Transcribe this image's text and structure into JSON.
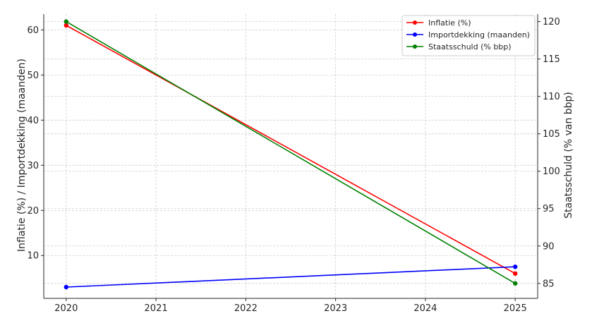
{
  "chart_data": {
    "type": "line",
    "x": [
      2020,
      2025
    ],
    "x_ticks": [
      "2020",
      "2021",
      "2022",
      "2023",
      "2024",
      "2025"
    ],
    "xlabel": "",
    "ylabel_left": "Inflatie (%) / Importdekking (maanden)",
    "ylabel_right": "Staatsschuld (% van bbp)",
    "y_left_ticks": [
      "10",
      "20",
      "30",
      "40",
      "50",
      "60"
    ],
    "y_right_ticks": [
      "85",
      "90",
      "95",
      "100",
      "105",
      "110",
      "115",
      "120"
    ],
    "ylim_left": [
      0.5,
      63.5
    ],
    "ylim_right": [
      83,
      121
    ],
    "grid": true,
    "legend_position": "top-right",
    "series": [
      {
        "name": "Inflatie (%)",
        "axis": "left",
        "color": "#ff0000",
        "values": [
          61,
          6
        ]
      },
      {
        "name": "Importdekking (maanden)",
        "axis": "left",
        "color": "#0000ff",
        "values": [
          3,
          7.5
        ]
      },
      {
        "name": "Staatsschuld (% bbp)",
        "axis": "right",
        "color": "#008000",
        "values": [
          120,
          85
        ]
      }
    ]
  }
}
